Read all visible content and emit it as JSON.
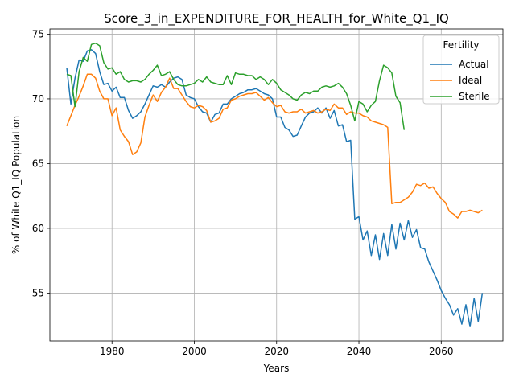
{
  "chart_data": {
    "type": "line",
    "title": "Score_3_in_EXPENDITURE_FOR_HEALTH_for_White_Q1_IQ",
    "xlabel": "Years",
    "ylabel": "% of White Q1_IQ Population",
    "xlim": [
      1964.9,
      2075
    ],
    "ylim": [
      51.3,
      75.4
    ],
    "xticks": [
      1980,
      2000,
      2020,
      2040,
      2060
    ],
    "yticks": [
      55,
      60,
      65,
      70,
      75
    ],
    "grid": true,
    "legend": {
      "title": "Fertility",
      "placement": "top-right"
    },
    "series": [
      {
        "name": "Actual",
        "color": "#1f77b4",
        "x": [
          1969,
          1970,
          1971,
          1972,
          1973,
          1974,
          1975,
          1976,
          1977,
          1978,
          1979,
          1980,
          1981,
          1982,
          1983,
          1984,
          1985,
          1986,
          1987,
          1988,
          1989,
          1990,
          1991,
          1992,
          1993,
          1994,
          1995,
          1996,
          1997,
          1998,
          1999,
          2000,
          2001,
          2002,
          2003,
          2004,
          2005,
          2006,
          2007,
          2008,
          2009,
          2010,
          2011,
          2012,
          2013,
          2014,
          2015,
          2016,
          2017,
          2018,
          2019,
          2020,
          2021,
          2022,
          2023,
          2024,
          2025,
          2026,
          2027,
          2028,
          2029,
          2030,
          2031,
          2032,
          2033,
          2034,
          2035,
          2036,
          2037,
          2038,
          2039,
          2040,
          2041,
          2042,
          2043,
          2044,
          2045,
          2046,
          2047,
          2048,
          2049,
          2050,
          2051,
          2052,
          2053,
          2054,
          2055,
          2056,
          2057,
          2058,
          2059,
          2060,
          2061,
          2062,
          2063,
          2064,
          2065,
          2066,
          2067,
          2068,
          2069,
          2070
        ],
        "values": [
          72.4,
          69.6,
          71.6,
          73.0,
          72.9,
          73.7,
          73.8,
          73.5,
          72.1,
          71.1,
          71.2,
          70.6,
          70.9,
          70.1,
          70.1,
          69.1,
          68.5,
          68.7,
          69.0,
          69.6,
          70.3,
          71.0,
          70.9,
          71.1,
          70.9,
          71.3,
          71.6,
          71.7,
          71.5,
          70.3,
          70.1,
          70.0,
          69.4,
          69.0,
          68.9,
          68.2,
          68.8,
          68.9,
          69.6,
          69.6,
          70.0,
          70.2,
          70.4,
          70.5,
          70.7,
          70.7,
          70.8,
          70.6,
          70.4,
          70.3,
          70.0,
          68.6,
          68.6,
          67.8,
          67.6,
          67.1,
          67.2,
          67.9,
          68.6,
          68.9,
          69.0,
          69.3,
          68.9,
          69.3,
          68.5,
          69.1,
          67.9,
          68.0,
          66.7,
          66.8,
          60.7,
          60.9,
          59.1,
          59.8,
          57.9,
          59.5,
          57.6,
          59.6,
          57.9,
          60.3,
          58.4,
          60.4,
          59.1,
          60.6,
          59.3,
          59.9,
          58.5,
          58.4,
          57.4,
          56.7,
          56.0,
          55.2,
          54.6,
          54.1,
          53.3,
          53.8,
          52.6,
          54.1,
          52.4,
          54.6,
          52.8,
          55.0
        ]
      },
      {
        "name": "Ideal",
        "color": "#ff7f0e",
        "x": [
          1969,
          1970,
          1971,
          1972,
          1973,
          1974,
          1975,
          1976,
          1977,
          1978,
          1979,
          1980,
          1981,
          1982,
          1983,
          1984,
          1985,
          1986,
          1987,
          1988,
          1989,
          1990,
          1991,
          1992,
          1993,
          1994,
          1995,
          1996,
          1997,
          1998,
          1999,
          2000,
          2001,
          2002,
          2003,
          2004,
          2005,
          2006,
          2007,
          2008,
          2009,
          2010,
          2011,
          2012,
          2013,
          2014,
          2015,
          2016,
          2017,
          2018,
          2019,
          2020,
          2021,
          2022,
          2023,
          2024,
          2025,
          2026,
          2027,
          2028,
          2029,
          2030,
          2031,
          2032,
          2033,
          2034,
          2035,
          2036,
          2037,
          2038,
          2039,
          2040,
          2041,
          2042,
          2043,
          2044,
          2045,
          2046,
          2047,
          2048,
          2049,
          2050,
          2051,
          2052,
          2053,
          2054,
          2055,
          2056,
          2057,
          2058,
          2059,
          2060,
          2061,
          2062,
          2063,
          2064,
          2065,
          2066,
          2067,
          2068,
          2069,
          2070
        ],
        "values": [
          67.9,
          68.7,
          69.5,
          70.2,
          71.0,
          71.9,
          71.9,
          71.6,
          70.6,
          70.0,
          70.0,
          68.7,
          69.3,
          67.6,
          67.1,
          66.7,
          65.7,
          65.9,
          66.6,
          68.6,
          69.5,
          70.3,
          69.8,
          70.5,
          70.9,
          71.6,
          70.8,
          70.8,
          70.3,
          69.8,
          69.4,
          69.3,
          69.5,
          69.4,
          69.1,
          68.2,
          68.3,
          68.5,
          69.2,
          69.3,
          69.9,
          70.0,
          70.2,
          70.3,
          70.4,
          70.4,
          70.5,
          70.2,
          69.9,
          70.1,
          69.7,
          69.4,
          69.5,
          69.0,
          68.9,
          69.0,
          69.0,
          69.2,
          68.9,
          69.0,
          69.1,
          68.9,
          69.0,
          69.2,
          69.1,
          69.6,
          69.3,
          69.3,
          68.8,
          69.0,
          68.9,
          68.9,
          68.7,
          68.6,
          68.3,
          68.2,
          68.1,
          68.0,
          67.8,
          61.9,
          62.0,
          62.0,
          62.2,
          62.4,
          62.8,
          63.4,
          63.3,
          63.5,
          63.1,
          63.2,
          62.7,
          62.3,
          62.0,
          61.3,
          61.1,
          60.8,
          61.3,
          61.3,
          61.4,
          61.3,
          61.2,
          61.4
        ]
      },
      {
        "name": "Sterile",
        "color": "#2ca02c",
        "x": [
          1969,
          1970,
          1971,
          1972,
          1973,
          1974,
          1975,
          1976,
          1977,
          1978,
          1979,
          1980,
          1981,
          1982,
          1983,
          1984,
          1985,
          1986,
          1987,
          1988,
          1989,
          1990,
          1991,
          1992,
          1993,
          1994,
          1995,
          1996,
          1997,
          1998,
          1999,
          2000,
          2001,
          2002,
          2003,
          2004,
          2005,
          2006,
          2007,
          2008,
          2009,
          2010,
          2011,
          2012,
          2013,
          2014,
          2015,
          2016,
          2017,
          2018,
          2019,
          2020,
          2021,
          2022,
          2023,
          2024,
          2025,
          2026,
          2027,
          2028,
          2029,
          2030,
          2031,
          2032,
          2033,
          2034,
          2035,
          2036,
          2037,
          2038,
          2039,
          2040,
          2041,
          2042,
          2043,
          2044,
          2045,
          2046,
          2047,
          2048,
          2049,
          2050,
          2051
        ],
        "values": [
          71.9,
          71.8,
          69.4,
          72.1,
          73.2,
          72.9,
          74.2,
          74.3,
          74.1,
          72.8,
          72.3,
          72.4,
          71.9,
          72.1,
          71.5,
          71.3,
          71.4,
          71.4,
          71.3,
          71.5,
          71.9,
          72.2,
          72.6,
          71.8,
          71.9,
          72.1,
          71.5,
          71.1,
          71.0,
          71.0,
          71.1,
          71.2,
          71.5,
          71.3,
          71.7,
          71.3,
          71.2,
          71.1,
          71.1,
          71.8,
          71.1,
          72.0,
          71.9,
          71.9,
          71.8,
          71.8,
          71.5,
          71.7,
          71.5,
          71.1,
          71.5,
          71.2,
          70.7,
          70.5,
          70.3,
          70.0,
          69.9,
          70.3,
          70.5,
          70.4,
          70.6,
          70.6,
          70.9,
          71.0,
          70.9,
          71.0,
          71.2,
          70.9,
          70.4,
          69.5,
          68.3,
          69.8,
          69.6,
          69.0,
          69.5,
          69.8,
          71.4,
          72.6,
          72.4,
          72.0,
          70.2,
          69.7,
          67.6
        ]
      }
    ]
  }
}
